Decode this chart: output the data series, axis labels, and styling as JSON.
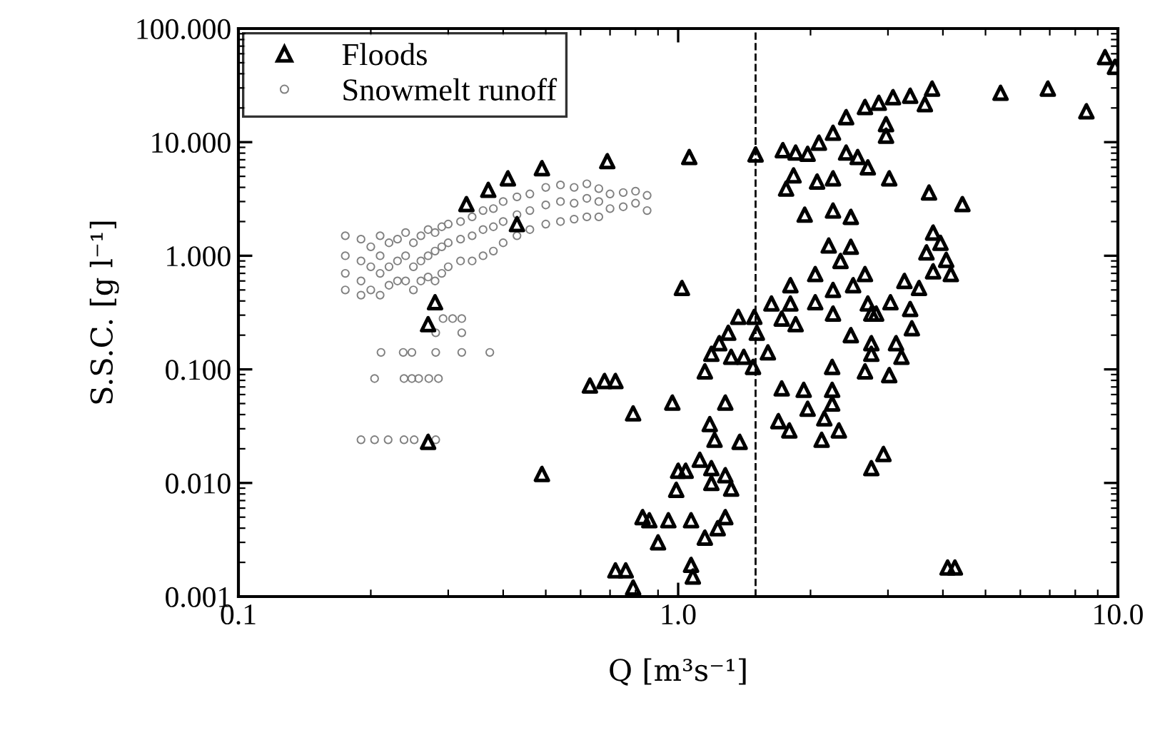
{
  "chart_data": {
    "type": "scatter",
    "xlabel": "Q [m³s⁻¹]",
    "ylabel": "S.S.C. [g l⁻¹]",
    "log": "xy",
    "xlim": [
      0.1,
      10
    ],
    "ylim": [
      0.001,
      100
    ],
    "xticks": [
      {
        "value": 0.1,
        "label": "0.1"
      },
      {
        "value": 1,
        "label": "1.0"
      },
      {
        "value": 10,
        "label": "10.0"
      }
    ],
    "yticks": [
      {
        "value": 0.001,
        "label": "0.001"
      },
      {
        "value": 0.01,
        "label": "0.010"
      },
      {
        "value": 0.1,
        "label": "0.100"
      },
      {
        "value": 1,
        "label": "1.000"
      },
      {
        "value": 10,
        "label": "10.000"
      },
      {
        "value": 100,
        "label": "100.000"
      }
    ],
    "legend": "top left",
    "grid": false,
    "ref_lines": [
      {
        "axis": "x",
        "value": 1.5,
        "color": "#000000",
        "line_style": "dashed"
      }
    ],
    "series": [
      {
        "name": "Floods",
        "color": "#000000",
        "marker": "triangle",
        "x": [
          0.69,
          0.49,
          0.41,
          0.37,
          0.33,
          0.43,
          0.28,
          0.27,
          0.27,
          0.63,
          0.68,
          0.72,
          0.79,
          0.97,
          0.49,
          0.99,
          1.0,
          0.83,
          0.86,
          0.95,
          0.9,
          0.72,
          0.76,
          0.79,
          1.06,
          1.5,
          1.02,
          1.73,
          1.85,
          1.97,
          2.09,
          2.25,
          2.41,
          2.66,
          2.86,
          3.08,
          3.37,
          3.78,
          3.64,
          2.97,
          2.97,
          5.41,
          6.93,
          8.48,
          9.35,
          9.85,
          2.41,
          2.56,
          2.7,
          3.02,
          1.83,
          1.76,
          2.07,
          2.25,
          1.94,
          2.25,
          2.47,
          3.72,
          4.43,
          2.2,
          2.47,
          2.34,
          3.8,
          3.95,
          3.67,
          4.07,
          3.8,
          4.17,
          2.05,
          2.66,
          3.27,
          3.53,
          1.8,
          1.63,
          1.8,
          2.05,
          2.25,
          2.5,
          2.25,
          2.7,
          2.82,
          3.04,
          3.37,
          3.4,
          1.72,
          1.85,
          1.37,
          1.49,
          1.51,
          1.3,
          1.24,
          1.19,
          1.32,
          1.41,
          1.48,
          1.6,
          1.15,
          2.47,
          2.75,
          2.75,
          2.75,
          3.13,
          3.22,
          3.02,
          2.66,
          2.24,
          2.24,
          2.24,
          2.15,
          2.32,
          2.12,
          1.72,
          1.93,
          1.97,
          1.69,
          1.79,
          2.93,
          2.75,
          1.28,
          1.18,
          1.21,
          1.38,
          1.12,
          1.04,
          1.19,
          1.28,
          1.19,
          1.32,
          1.07,
          1.15,
          1.23,
          1.28,
          1.07,
          1.08,
          4.1,
          4.26
        ],
        "values": [
          6.8,
          5.9,
          4.8,
          3.8,
          2.85,
          1.9,
          0.39,
          0.25,
          0.023,
          0.072,
          0.079,
          0.079,
          0.041,
          0.051,
          0.012,
          0.0087,
          0.0128,
          0.005,
          0.0047,
          0.0047,
          0.003,
          0.0017,
          0.0017,
          0.0012,
          7.4,
          7.8,
          0.52,
          8.5,
          8.1,
          7.9,
          9.9,
          12.1,
          16.6,
          20.4,
          22.2,
          24.9,
          25.6,
          29.6,
          21.6,
          14.4,
          11.4,
          27.2,
          29.6,
          18.7,
          56,
          46,
          8.1,
          7.4,
          6.0,
          4.8,
          5.1,
          3.9,
          4.5,
          4.8,
          2.3,
          2.5,
          2.2,
          3.6,
          2.85,
          1.23,
          1.2,
          0.9,
          1.6,
          1.3,
          1.07,
          0.92,
          0.73,
          0.69,
          0.69,
          0.69,
          0.6,
          0.52,
          0.55,
          0.38,
          0.38,
          0.39,
          0.5,
          0.55,
          0.31,
          0.38,
          0.31,
          0.39,
          0.34,
          0.23,
          0.28,
          0.25,
          0.29,
          0.29,
          0.21,
          0.21,
          0.17,
          0.137,
          0.129,
          0.129,
          0.105,
          0.141,
          0.096,
          0.2,
          0.31,
          0.17,
          0.137,
          0.17,
          0.129,
          0.089,
          0.096,
          0.105,
          0.066,
          0.05,
          0.037,
          0.029,
          0.024,
          0.068,
          0.066,
          0.045,
          0.035,
          0.029,
          0.018,
          0.0135,
          0.051,
          0.033,
          0.024,
          0.023,
          0.016,
          0.0128,
          0.0135,
          0.0117,
          0.01,
          0.0089,
          0.0047,
          0.0033,
          0.004,
          0.005,
          0.0019,
          0.0015,
          0.0018,
          0.0018
        ]
      },
      {
        "name": "Snowmelt runoff",
        "color": "#808080",
        "marker": "circle",
        "x": [
          0.175,
          0.175,
          0.175,
          0.175,
          0.19,
          0.19,
          0.19,
          0.19,
          0.2,
          0.2,
          0.2,
          0.21,
          0.21,
          0.21,
          0.21,
          0.22,
          0.22,
          0.22,
          0.23,
          0.23,
          0.23,
          0.24,
          0.24,
          0.24,
          0.25,
          0.25,
          0.25,
          0.26,
          0.26,
          0.26,
          0.27,
          0.27,
          0.27,
          0.28,
          0.28,
          0.28,
          0.29,
          0.29,
          0.29,
          0.3,
          0.3,
          0.3,
          0.32,
          0.32,
          0.32,
          0.34,
          0.34,
          0.34,
          0.36,
          0.36,
          0.36,
          0.38,
          0.38,
          0.38,
          0.4,
          0.4,
          0.4,
          0.43,
          0.43,
          0.43,
          0.46,
          0.46,
          0.46,
          0.5,
          0.5,
          0.5,
          0.54,
          0.54,
          0.54,
          0.58,
          0.58,
          0.58,
          0.62,
          0.62,
          0.62,
          0.66,
          0.66,
          0.66,
          0.7,
          0.7,
          0.75,
          0.75,
          0.8,
          0.8,
          0.85,
          0.85,
          0.292,
          0.307,
          0.322,
          0.281,
          0.322,
          0.211,
          0.237,
          0.248,
          0.281,
          0.322,
          0.373,
          0.204,
          0.238,
          0.248,
          0.257,
          0.271,
          0.285,
          0.19,
          0.204,
          0.219,
          0.238,
          0.251,
          0.281
        ],
        "values": [
          1.5,
          1.0,
          0.7,
          0.5,
          1.4,
          0.9,
          0.6,
          0.45,
          1.2,
          0.8,
          0.5,
          1.5,
          1.0,
          0.7,
          0.45,
          1.3,
          0.8,
          0.55,
          1.4,
          0.9,
          0.6,
          1.6,
          1.0,
          0.6,
          1.3,
          0.8,
          0.5,
          1.5,
          0.9,
          0.6,
          1.7,
          1.0,
          0.65,
          1.6,
          1.1,
          0.6,
          1.8,
          1.2,
          0.7,
          1.9,
          1.3,
          0.8,
          2.0,
          1.4,
          0.9,
          2.2,
          1.5,
          0.9,
          2.5,
          1.7,
          1.0,
          2.6,
          1.8,
          1.1,
          3.0,
          2.0,
          1.3,
          3.3,
          2.3,
          1.5,
          3.5,
          2.5,
          1.7,
          4.0,
          2.8,
          1.9,
          4.2,
          3.0,
          2.0,
          4.0,
          2.9,
          2.1,
          4.3,
          3.2,
          2.2,
          3.9,
          3.0,
          2.2,
          3.5,
          2.6,
          3.6,
          2.7,
          3.7,
          2.9,
          3.4,
          2.5,
          0.28,
          0.28,
          0.28,
          0.21,
          0.21,
          0.141,
          0.141,
          0.141,
          0.141,
          0.141,
          0.141,
          0.083,
          0.083,
          0.083,
          0.083,
          0.083,
          0.083,
          0.024,
          0.024,
          0.024,
          0.024,
          0.024,
          0.024
        ]
      }
    ]
  }
}
